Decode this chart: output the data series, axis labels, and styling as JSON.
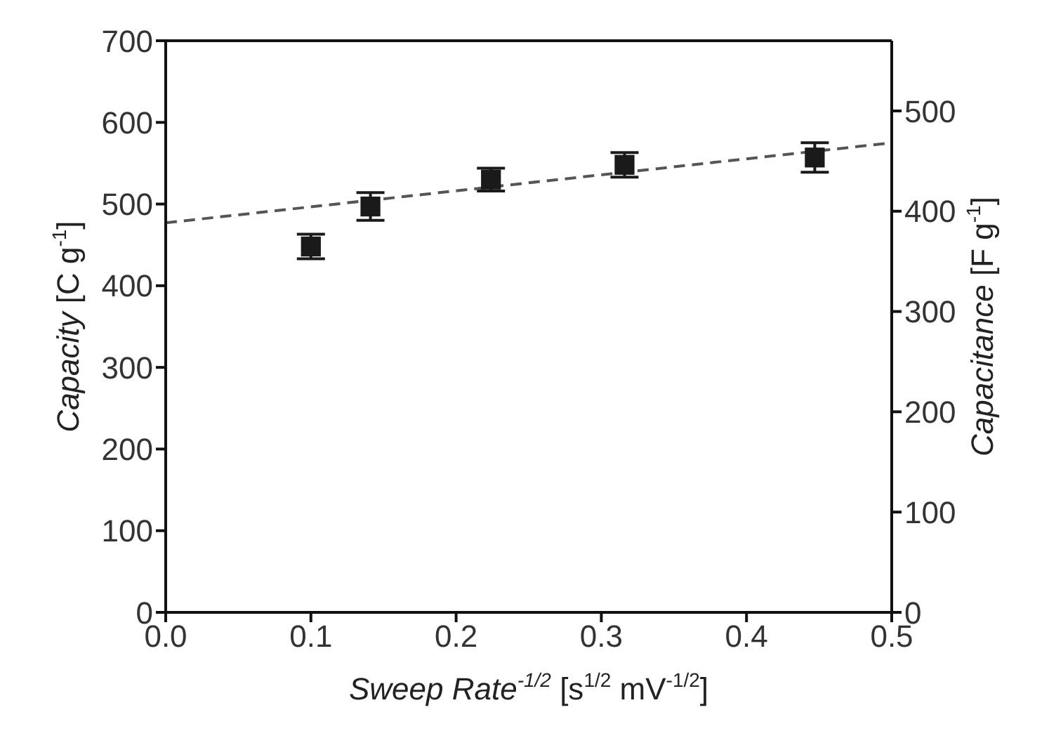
{
  "chart_data": {
    "type": "scatter",
    "xlabel": "Sweep Rate$^{-1/2}$ [s$^{1/2}$ mV$^{-1/2}$]",
    "ylabel": "Capacity [C g$^{-1}$]",
    "y2label": "Capacitance [F g$^{-1}$]",
    "x": [
      0.1,
      0.141,
      0.224,
      0.316,
      0.447
    ],
    "series": [
      {
        "color": "#1a1a1a",
        "marker": "square",
        "values": [
          448,
          497,
          530,
          548,
          557
        ],
        "errors": [
          15,
          17,
          14,
          15,
          18
        ]
      },
      {
        "type": "line",
        "color": "#555555",
        "line_style": "dashed",
        "x": [
          0,
          0.5
        ],
        "values": [
          477,
          575
        ]
      }
    ],
    "xlim": [
      0,
      0.5
    ],
    "xticks": [
      {
        "value": 0,
        "label": "0.0"
      },
      0.1,
      0.2,
      0.3,
      0.4,
      0.5
    ],
    "ylim": [
      0,
      700
    ],
    "yticks": [
      0,
      100,
      200,
      300,
      400,
      500,
      600,
      700
    ],
    "y2lim": [
      0,
      570
    ],
    "y2ticks": [
      0,
      100,
      200,
      300,
      400,
      500
    ]
  }
}
